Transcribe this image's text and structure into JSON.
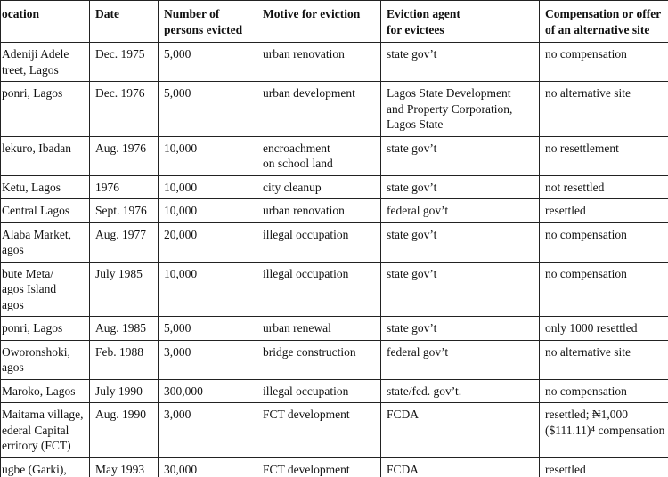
{
  "table": {
    "header": [
      "ocation",
      "Date",
      "Number of\npersons evicted",
      "Motive for eviction",
      "Eviction agent\nfor evictees",
      "Compensation or offer\nof an alternative site"
    ],
    "rows": [
      [
        "Adeniji Adele\ntreet, Lagos",
        "Dec. 1975",
        "5,000",
        "urban renovation",
        "state gov’t",
        "no compensation"
      ],
      [
        "ponri, Lagos",
        "Dec. 1976",
        "5,000",
        "urban development",
        "Lagos State Development\nand Property Corporation,\nLagos State",
        "no alternative site"
      ],
      [
        "lekuro, Ibadan",
        "Aug. 1976",
        "10,000",
        "encroachment\non school land",
        "state gov’t",
        "no resettlement"
      ],
      [
        "Ketu, Lagos",
        "1976",
        "10,000",
        "city cleanup",
        "state gov’t",
        "not resettled"
      ],
      [
        "Central Lagos",
        "Sept. 1976",
        "10,000",
        "urban renovation",
        "federal gov’t",
        "resettled"
      ],
      [
        "Alaba Market,\nagos",
        "Aug. 1977",
        "20,000",
        "illegal occupation",
        "state gov’t",
        "no compensation"
      ],
      [
        "bute Meta/\nagos Island\nagos",
        "July 1985",
        "10,000",
        "illegal occupation",
        "state gov’t",
        "no compensation"
      ],
      [
        "ponri, Lagos",
        "Aug. 1985",
        "5,000",
        "urban renewal",
        "state gov’t",
        "only 1000 resettled"
      ],
      [
        "Oworonshoki,\nagos",
        "Feb. 1988",
        "3,000",
        "bridge construction",
        "federal gov’t",
        "no alternative site"
      ],
      [
        "Maroko, Lagos",
        "July 1990",
        "300,000",
        "illegal occupation",
        "state/fed. gov’t.",
        "no compensation"
      ],
      [
        "Maitama village,\nederal Capital\nerritory (FCT)",
        "Aug. 1990",
        "3,000",
        "FCT development",
        "FCDA",
        "resettled; ₦1,000\n($111.11)⁴ compensation"
      ],
      [
        "ugbe (Garki),\nAbuja",
        "May 1993",
        "30,000",
        "FCT development",
        "FCDA",
        "resettled"
      ]
    ]
  }
}
